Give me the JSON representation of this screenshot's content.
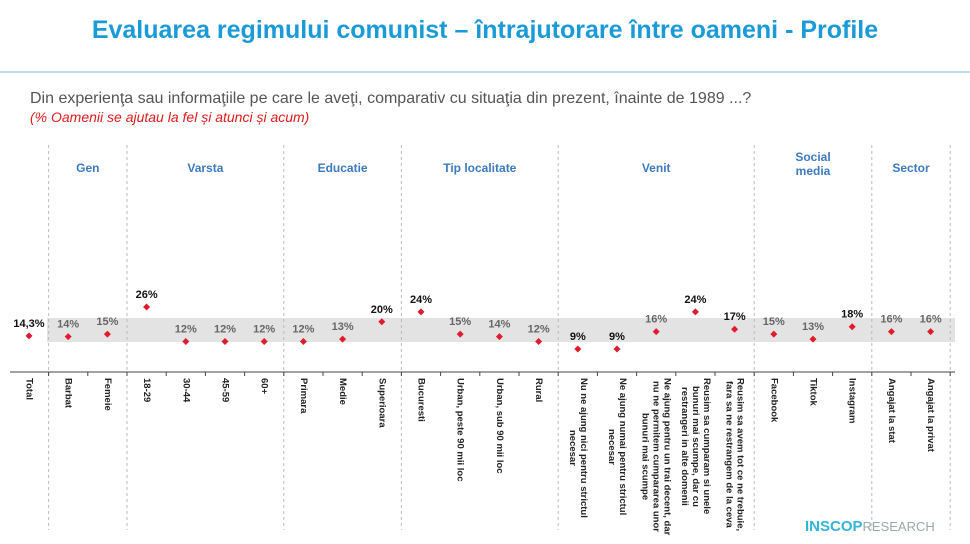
{
  "title": "Evaluarea regimului comunist – întrajutorare între oameni - Profile",
  "question": "Din experienţa sau informaţiile pe care le aveţi, comparativ cu situaţia din prezent, înainte de 1989 ...?",
  "note": "(% Oamenii se ajutau la fel și atunci și acum)",
  "logo": {
    "brand": "INSCOP",
    "suffix": "RESEARCH"
  },
  "colors": {
    "title": "#1b9ad8",
    "marker": "#e01b2b",
    "group_label": "#3d7ac0",
    "band": "#e3e3e3",
    "note": "#e01b1b"
  },
  "chart_data": {
    "type": "scatter",
    "title": "",
    "ylim": [
      0,
      30
    ],
    "grid": false,
    "groups": [
      {
        "label": "Gen",
        "categories": [
          "Barbat",
          "Femeie"
        ]
      },
      {
        "label": "Varsta",
        "categories": [
          "18-29",
          "30-44",
          "45-59",
          "60+"
        ]
      },
      {
        "label": "Educatie",
        "categories": [
          "Primara",
          "Medie",
          "Superioara"
        ]
      },
      {
        "label": "Tip localitate",
        "categories": [
          "Bucuresti",
          "Urban, peste 90 mii loc",
          "Urban, sub 90 mii loc",
          "Rural"
        ]
      },
      {
        "label": "Venit",
        "categories": [
          "Nu ne ajung nici pentru strictul necesar",
          "Ne ajung numai pentru strictul necesar",
          "Ne ajung pentru un trai decent, dar nu ne permitem cumpararea unor bunuri mai scumpe",
          "Reusim sa cumparam si unele bunuri mai scumpe, dar cu restrangeri in alte domenii",
          "Reusim sa avem tot ce ne trebuie, fara sa ne restrangem de la ceva"
        ]
      },
      {
        "label": "Social media",
        "categories": [
          "Facebook",
          "Tiktok",
          "Instagram"
        ]
      },
      {
        "label": "Sector",
        "categories": [
          "Angajat la stat",
          "Angajat la privat"
        ]
      }
    ],
    "categories": [
      "Total",
      "Barbat",
      "Femeie",
      "18-29",
      "30-44",
      "45-59",
      "60+",
      "Primara",
      "Medie",
      "Superioara",
      "Bucuresti",
      "Urban, peste 90 mii loc",
      "Urban, sub 90 mii loc",
      "Rural",
      "Nu ne ajung nici pentru strictul\nnecesar",
      "Ne ajung numai pentru strictul\nnecesar",
      "Ne ajung pentru un trai decent, dar\nnu ne permitem cumpararea unor\nbunuri mai scumpe",
      "Reusim sa cumparam si unele\nbunuri mai scumpe, dar cu\nrestrangeri in alte domenii",
      "Reusim sa avem tot ce ne trebuie,\nfara sa ne restrangem de la ceva",
      "Facebook",
      "Tiktok",
      "Instagram",
      "Angajat la stat",
      "Angajat la privat"
    ],
    "values": [
      14.3,
      14,
      15,
      26,
      12,
      12,
      12,
      12,
      13,
      20,
      24,
      15,
      14,
      12,
      9,
      9,
      16,
      24,
      17,
      15,
      13,
      18,
      16,
      16
    ],
    "labels": [
      "14,3%",
      "14%",
      "15%",
      "26%",
      "12%",
      "12%",
      "12%",
      "12%",
      "13%",
      "20%",
      "24%",
      "15%",
      "14%",
      "12%",
      "9%",
      "9%",
      "16%",
      "24%",
      "17%",
      "15%",
      "13%",
      "18%",
      "16%",
      "16%"
    ],
    "significant": [
      true,
      false,
      false,
      true,
      false,
      false,
      false,
      false,
      false,
      true,
      true,
      false,
      false,
      false,
      true,
      true,
      false,
      true,
      true,
      false,
      false,
      true,
      false,
      false
    ]
  }
}
